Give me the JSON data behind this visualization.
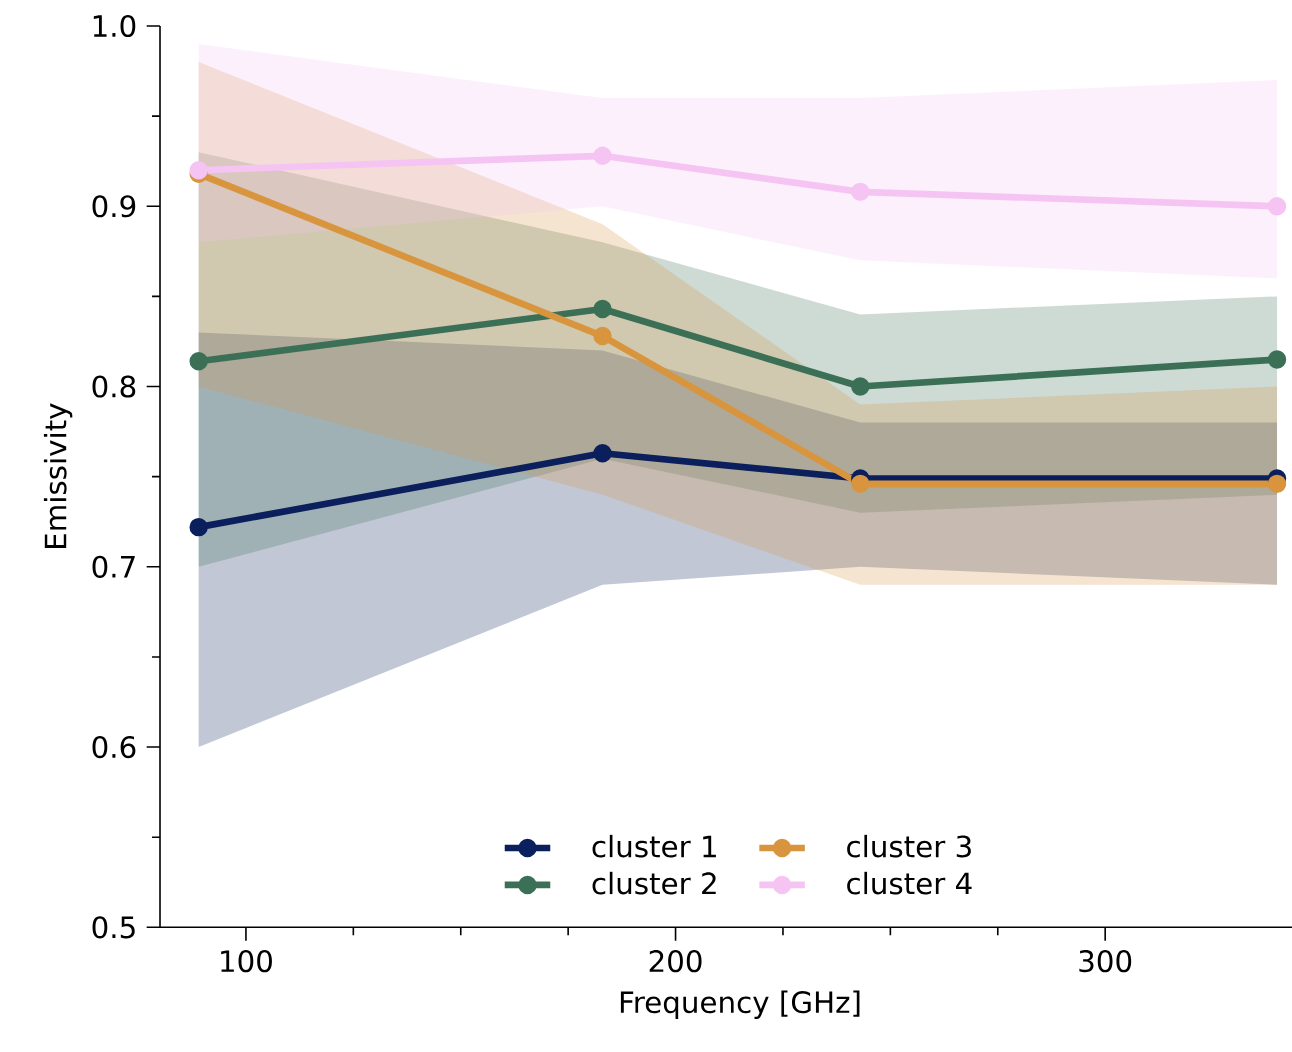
{
  "chart_data": {
    "type": "line",
    "xlabel": "Frequency [GHz]",
    "ylabel": "Emissivity",
    "x": [
      89,
      183,
      243,
      340
    ],
    "series": [
      {
        "name": "cluster 1",
        "color": "#0b1f5c",
        "values": [
          0.722,
          0.763,
          0.749,
          0.749
        ],
        "lower": [
          0.6,
          0.69,
          0.7,
          0.69
        ],
        "upper": [
          0.83,
          0.82,
          0.78,
          0.78
        ]
      },
      {
        "name": "cluster 2",
        "color": "#3b7056",
        "values": [
          0.814,
          0.843,
          0.8,
          0.815
        ],
        "lower": [
          0.7,
          0.76,
          0.73,
          0.74
        ],
        "upper": [
          0.93,
          0.88,
          0.84,
          0.85
        ]
      },
      {
        "name": "cluster 3",
        "color": "#d8953e",
        "values": [
          0.918,
          0.828,
          0.746,
          0.746
        ],
        "lower": [
          0.8,
          0.74,
          0.69,
          0.69
        ],
        "upper": [
          0.98,
          0.89,
          0.79,
          0.8
        ]
      },
      {
        "name": "cluster 4",
        "color": "#f5c4f2",
        "values": [
          0.92,
          0.928,
          0.908,
          0.9
        ],
        "lower": [
          0.88,
          0.9,
          0.87,
          0.86
        ],
        "upper": [
          0.99,
          0.96,
          0.96,
          0.97
        ]
      }
    ],
    "xlim": [
      80,
      350
    ],
    "xticks": [
      100,
      200,
      300
    ],
    "ylim": [
      0.5,
      1.0
    ],
    "yticks": [
      0.5,
      0.6,
      0.7,
      0.8,
      0.9,
      {
        "value": 1.0,
        "label": "1.0"
      }
    ],
    "marker": "circle",
    "line_style": "solid",
    "grid": false,
    "legend": "bottom"
  }
}
